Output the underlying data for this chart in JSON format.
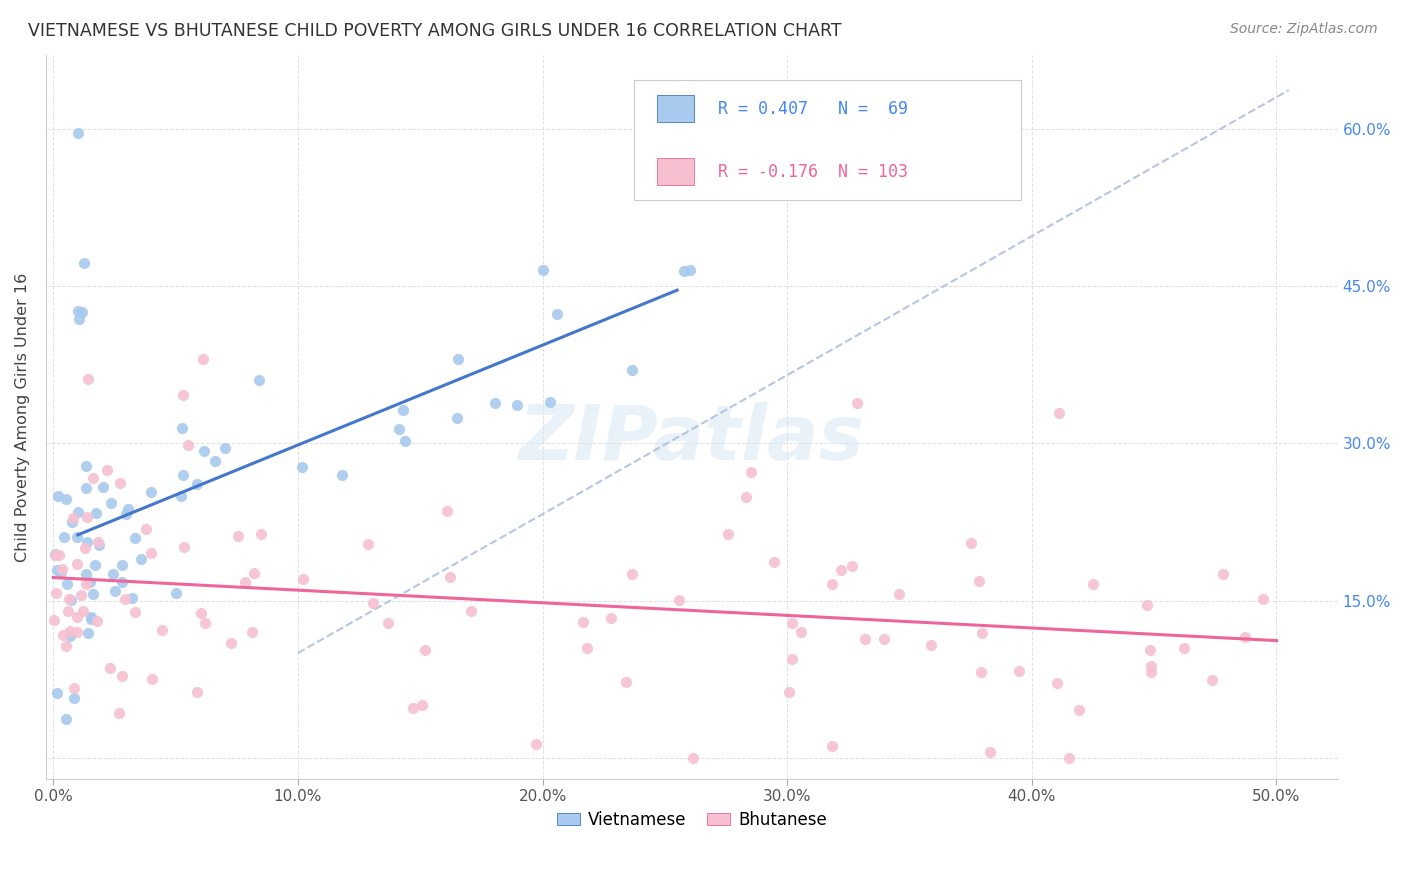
{
  "title": "VIETNAMESE VS BHUTANESE CHILD POVERTY AMONG GIRLS UNDER 16 CORRELATION CHART",
  "source": "Source: ZipAtlas.com",
  "ylabel": "Child Poverty Among Girls Under 16",
  "yticks": [
    0.0,
    0.15,
    0.3,
    0.45,
    0.6
  ],
  "xticks": [
    0.0,
    0.1,
    0.2,
    0.3,
    0.4,
    0.5
  ],
  "xlim": [
    -0.003,
    0.525
  ],
  "ylim": [
    -0.02,
    0.67
  ],
  "legend_blue_label": "Vietnamese",
  "legend_pink_label": "Bhutanese",
  "R_blue": 0.407,
  "N_blue": 69,
  "R_pink": -0.176,
  "N_pink": 103,
  "blue_scatter_color": "#A8CAEE",
  "pink_scatter_color": "#F7C0D0",
  "blue_line_color": "#4477CC",
  "pink_line_color": "#EE6699",
  "dashed_line_color": "#AABBDD",
  "title_color": "#333333",
  "right_tick_color": "#4488EE",
  "background_color": "#FFFFFF",
  "grid_color": "#DDDDDD",
  "seed": 7
}
